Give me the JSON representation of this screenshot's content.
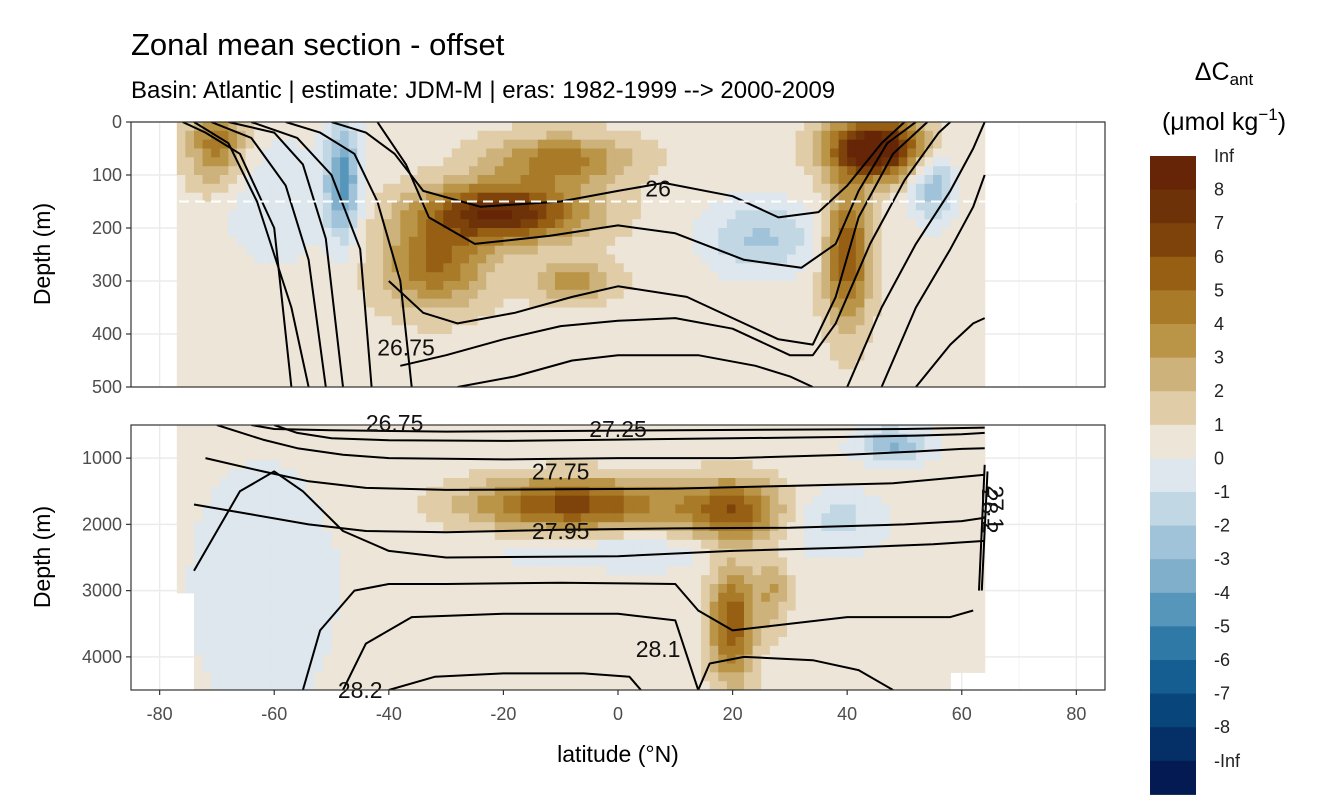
{
  "chart_data": {
    "type": "heatmap",
    "title": "Zonal mean section - offset",
    "subtitle": "Basin: Atlantic | estimate: JDM-M | eras: 1982-1999 --> 2000-2009",
    "xlabel": "latitude (°N)",
    "xlim": [
      -85,
      85
    ],
    "x_ticks": [
      -80,
      -60,
      -40,
      -20,
      0,
      20,
      40,
      60,
      80
    ],
    "x_tick_labels": [
      "-80",
      "-60",
      "-40",
      "-20",
      "0",
      "20",
      "40",
      "60",
      "80"
    ],
    "data_lat_range": [
      -77,
      64
    ],
    "panels": [
      {
        "ylabel": "Depth (m)",
        "ylim": [
          0,
          500
        ],
        "y_reversed": true,
        "y_ticks": [
          0,
          100,
          200,
          300,
          400,
          500
        ],
        "y_tick_labels": [
          "0",
          "100",
          "200",
          "300",
          "400",
          "500"
        ],
        "reference_depth": 150,
        "isopycnal_labels": [
          {
            "text": "26",
            "lat": 7,
            "depth": 125
          },
          {
            "text": "26.75",
            "lat": -37,
            "depth": 425
          }
        ]
      },
      {
        "ylabel": "Depth (m)",
        "ylim": [
          500,
          4500
        ],
        "y_reversed": true,
        "y_ticks": [
          1000,
          2000,
          3000,
          4000
        ],
        "y_tick_labels": [
          "1000",
          "2000",
          "3000",
          "4000"
        ],
        "isopycnal_labels": [
          {
            "text": "26.75",
            "lat": -39,
            "depth": 470
          },
          {
            "text": "27.25",
            "lat": 0,
            "depth": 560
          },
          {
            "text": "27.75",
            "lat": -10,
            "depth": 1200
          },
          {
            "text": "27.95",
            "lat": -10,
            "depth": 2100
          },
          {
            "text": "28.1",
            "lat": 7,
            "depth": 3880
          },
          {
            "text": "28.2",
            "lat": -45,
            "depth": 4500
          },
          {
            "text": "28.2",
            "lat": 63.5,
            "depth": 1800
          },
          {
            "text": "27.1",
            "lat": 64.5,
            "depth": 1750
          }
        ]
      }
    ],
    "legend": {
      "title": "ΔC",
      "title_subscript": "ant",
      "units": "(μmol kg",
      "units_superscript": "−1",
      "units_close": ")",
      "position": "right",
      "breaks": [
        "Inf",
        "8",
        "7",
        "6",
        "5",
        "4",
        "3",
        "2",
        "1",
        "0",
        "-1",
        "-2",
        "-3",
        "-4",
        "-5",
        "-6",
        "-7",
        "-8",
        "-Inf"
      ],
      "colors": [
        "#662506",
        "#6e3208",
        "#7e430a",
        "#965f13",
        "#a97a28",
        "#ba9548",
        "#cdb27b",
        "#e0cca6",
        "#ede5d7",
        "#dde7ed",
        "#c2d7e4",
        "#a1c3d9",
        "#80afcc",
        "#5796bb",
        "#2f79a7",
        "#155e91",
        "#07457b",
        "#053067",
        "#031b52"
      ]
    }
  }
}
